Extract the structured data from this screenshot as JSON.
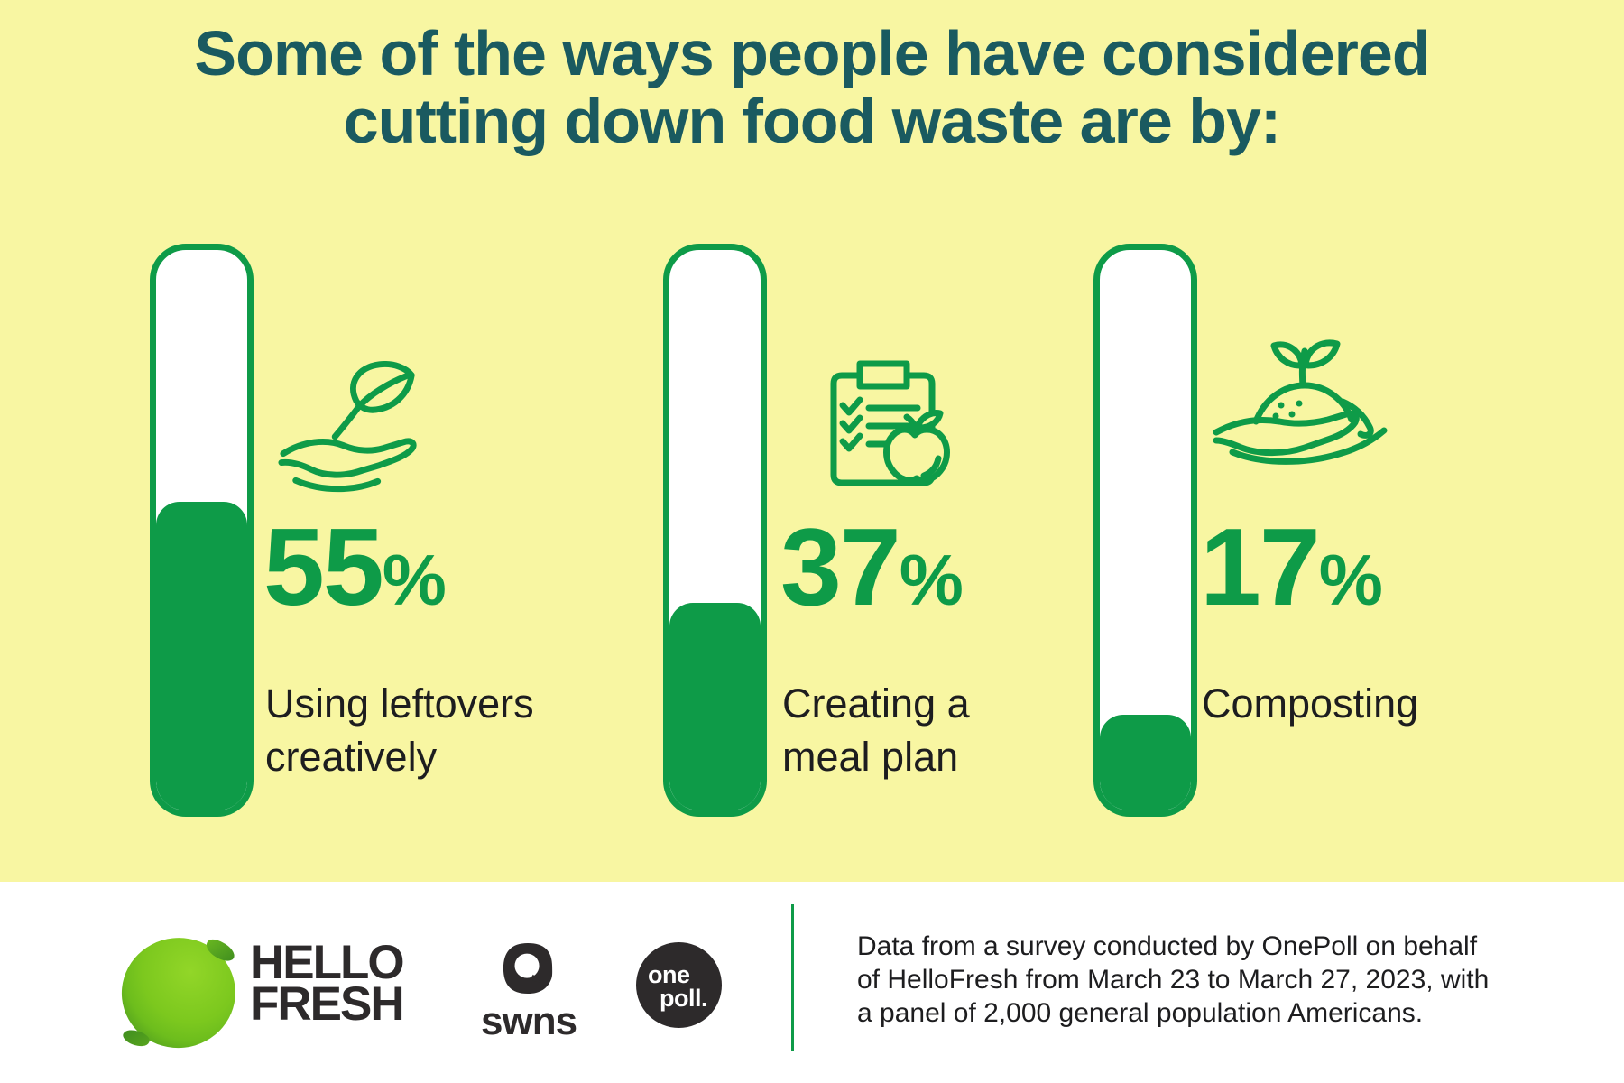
{
  "title": {
    "line1": "Some of the ways people have considered",
    "line2": "cutting down food waste are by:"
  },
  "chart_data": {
    "type": "bar",
    "categories": [
      "Using leftovers creatively",
      "Creating a meal plan",
      "Composting"
    ],
    "values": [
      55,
      37,
      17
    ],
    "unit": "%",
    "ylim": [
      0,
      100
    ],
    "title": "Some of the ways people have considered cutting down food waste are by:",
    "xlabel": "",
    "ylabel": "",
    "legend": "none",
    "grid": false
  },
  "stats": [
    {
      "percent": "55",
      "percent_sign": "%",
      "label_line1": "Using leftovers",
      "label_line2": "creatively",
      "icon": "hand-holding-leaf-icon"
    },
    {
      "percent": "37",
      "percent_sign": "%",
      "label_line1": "Creating a",
      "label_line2": "meal plan",
      "icon": "meal-plan-checklist-apple-icon"
    },
    {
      "percent": "17",
      "percent_sign": "%",
      "label_line1": "Composting",
      "label_line2": "",
      "icon": "hand-holding-compost-sprout-icon"
    }
  ],
  "footer": {
    "hellofresh": {
      "line1": "HELLO",
      "line2": "FRESH"
    },
    "swns": "swns",
    "onepoll": {
      "line1": "one",
      "line2": "poll."
    },
    "source_line1": "Data from a survey conducted by OnePoll on behalf",
    "source_line2": "of HelloFresh from March 23 to March 27, 2023, with",
    "source_line3": "a panel of 2,000 general population Americans."
  },
  "colors": {
    "background_yellow": "#f8f6a2",
    "accent_green": "#0e9b48",
    "title_teal": "#1a5a60",
    "text_ink": "#1d1d1f",
    "logo_black": "#2d2a2b",
    "lime_green": "#7cc81e",
    "footer_white": "#ffffff"
  }
}
